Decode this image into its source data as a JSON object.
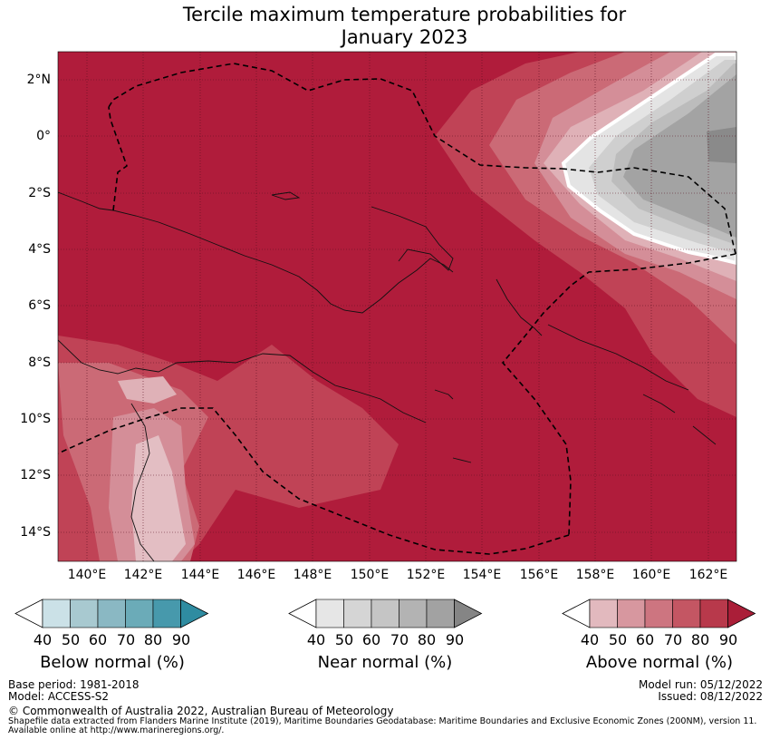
{
  "title_line1": "Tercile maximum temperature probabilities for",
  "title_line2": "January 2023",
  "map": {
    "lat_ticks": [
      "2°N",
      "0°",
      "2°S",
      "4°S",
      "6°S",
      "8°S",
      "10°S",
      "12°S",
      "14°S"
    ],
    "lon_ticks": [
      "140°E",
      "142°E",
      "144°E",
      "146°E",
      "148°E",
      "150°E",
      "152°E",
      "154°E",
      "156°E",
      "158°E",
      "160°E",
      "162°E"
    ]
  },
  "legends": {
    "below": {
      "title": "Below normal (%)",
      "ticks": [
        "40",
        "50",
        "60",
        "70",
        "80",
        "90"
      ],
      "colors": [
        "#cbe1e7",
        "#a8c9d0",
        "#8ab8c3",
        "#6babb8",
        "#4799ac",
        "#2f8ca1"
      ]
    },
    "near": {
      "title": "Near normal (%)",
      "ticks": [
        "40",
        "50",
        "60",
        "70",
        "80",
        "90"
      ],
      "colors": [
        "#e6e6e6",
        "#d5d5d5",
        "#c5c5c5",
        "#b3b3b3",
        "#a2a2a2",
        "#858585"
      ]
    },
    "above": {
      "title": "Above normal (%)",
      "ticks": [
        "40",
        "50",
        "60",
        "70",
        "80",
        "90"
      ],
      "colors": [
        "#e2b9be",
        "#d7979f",
        "#cd7580",
        "#c45663",
        "#b8394b",
        "#aa1e38"
      ]
    }
  },
  "footer": {
    "base_period": "Base period: 1981-2018",
    "model": "Model: ACCESS-S2",
    "model_run": "Model run: 05/12/2022",
    "issued": "Issued: 08/12/2022",
    "copyright": "© Commonwealth of Australia 2022, Australian Bureau of Meteorology",
    "shapefile_line1": "Shapefile data extracted from Flanders Marine Institute (2019), Maritime Boundaries Geodatabase: Maritime Boundaries and Exclusive Economic Zones (200NM), version 11.",
    "shapefile_line2": "Available online at http://www.marineregions.org/."
  }
}
